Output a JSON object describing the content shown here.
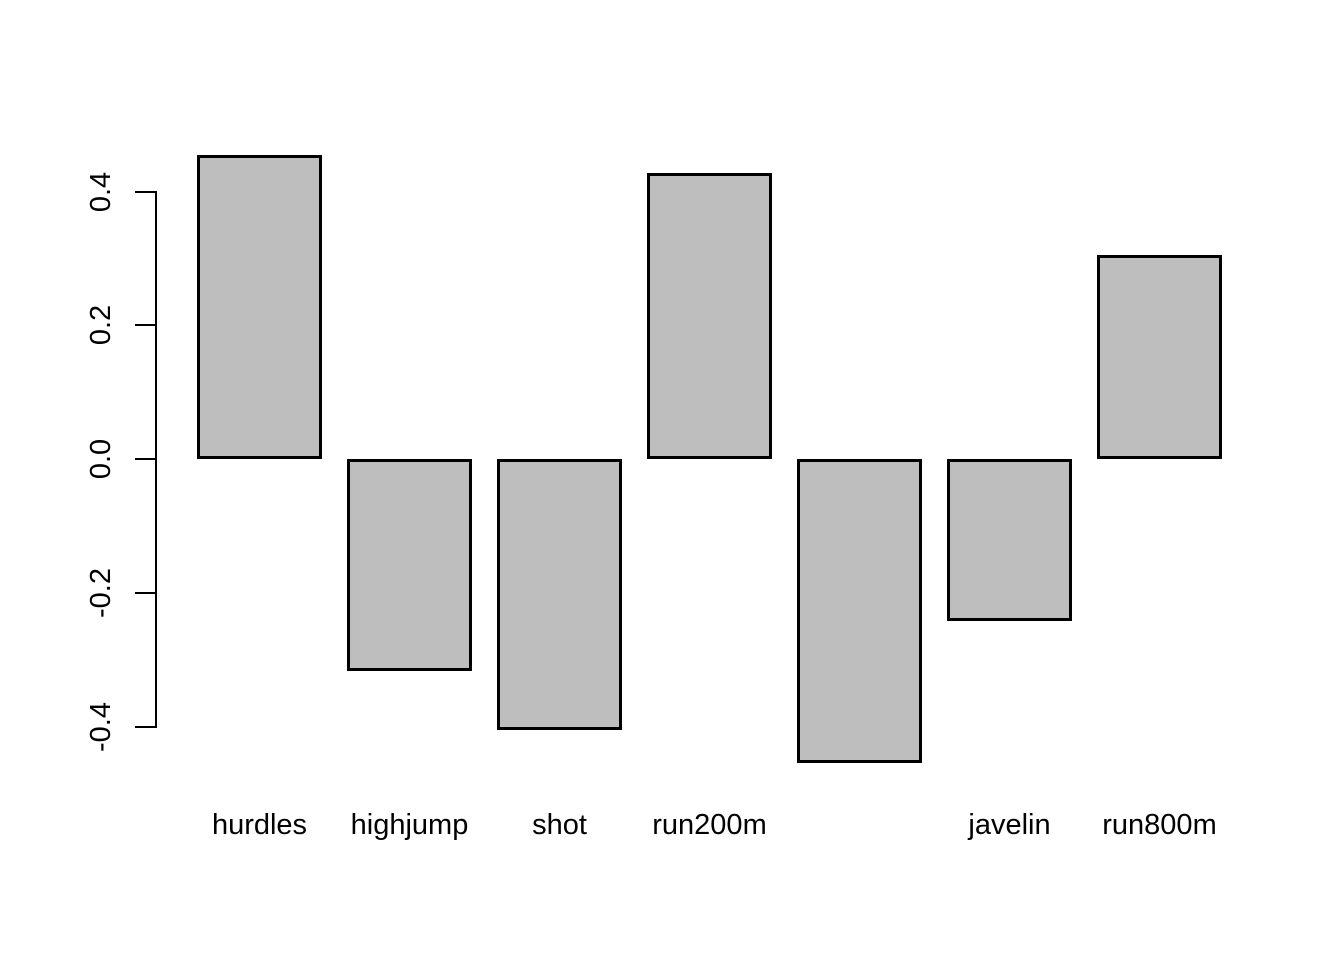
{
  "figure": {
    "background": "#ffffff"
  },
  "chart_data": {
    "type": "bar",
    "categories": [
      "hurdles",
      "highjump",
      "shot",
      "run200m",
      "",
      "javelin",
      "run800m"
    ],
    "values": [
      0.455,
      -0.317,
      -0.405,
      0.428,
      -0.455,
      -0.242,
      0.305
    ],
    "title": "",
    "xlabel": "",
    "ylabel": "",
    "ylim": [
      -0.47,
      0.47
    ],
    "yticks": [
      0.4,
      0.2,
      0.0,
      -0.2,
      -0.4
    ],
    "ytick_labels": [
      "0.4",
      "0.2",
      "0.0",
      "-0.2",
      "-0.4"
    ],
    "grid": false,
    "legend_position": "none",
    "bar_fill_color": "#bebebe",
    "bar_border_color": "#000000",
    "axis_color": "#000000"
  }
}
